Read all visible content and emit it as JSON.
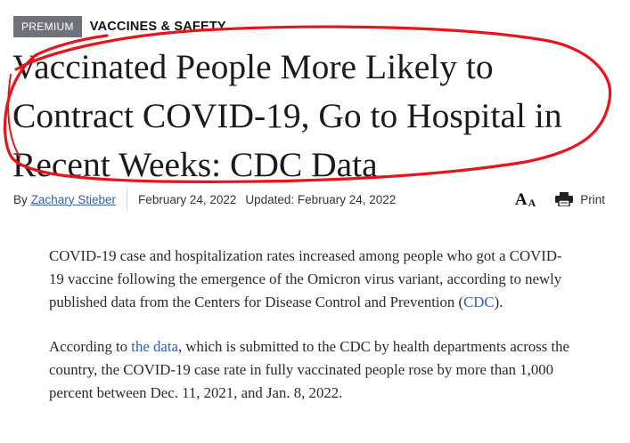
{
  "tags": {
    "premium": "PREMIUM",
    "category": "VACCINES & SAFETY"
  },
  "headline": "Vaccinated People More Likely to Contract COVID-19, Go to Hospital in Recent Weeks: CDC Data",
  "byline": {
    "prefix": "By",
    "author": "Zachary Stieber",
    "date": "February 24, 2022",
    "updated": "Updated: February 24, 2022"
  },
  "tools": {
    "fontsize_big": "A",
    "fontsize_small": "A",
    "print": "Print"
  },
  "article": {
    "p1_text": "COVID-19 case and hospitalization rates increased among people who got a COVID-19 vaccine following the emergence of the Omicron virus variant, according to newly published data from the Centers for Disease Control and Prevention (",
    "p1_link": "CDC",
    "p1_end": ").",
    "p2_start": "According to ",
    "p2_link": "the data",
    "p2_text": ", which is submitted to the CDC by health departments across the country, the COVID-19 case rate in fully vaccinated people rose by more than 1,000 percent between Dec. 11, 2021, and Jan. 8, 2022."
  },
  "colors": {
    "annotation_circle": "#e8141b",
    "link": "#2e5fb3",
    "premium_badge": "#6f7379"
  },
  "icons": {
    "print": "printer-icon",
    "fontsize": "font-size-icon"
  }
}
